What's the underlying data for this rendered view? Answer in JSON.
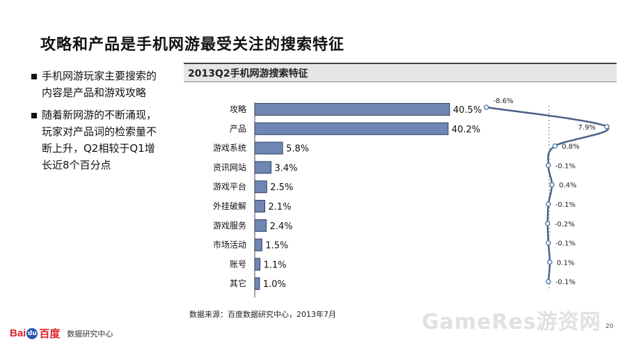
{
  "slide": {
    "title": "攻略和产品是手机网游最受关注的搜索特征",
    "bullets": [
      "手机网游玩家主要搜索的内容是产品和游戏攻略",
      "随着新网游的不断涌现，玩家对产品词的检索量不断上升，Q2相较于Q1增长近8个百分点"
    ],
    "source": "数据来源：百度数据研究中心，2013年7月",
    "logo_text": "Bai",
    "logo_paw": "du",
    "logo_brand": "百度",
    "logo_center": "数据研究中心",
    "watermark": "GameRes游资网",
    "page_number": "20"
  },
  "chart_data": [
    {
      "type": "bar",
      "orientation": "horizontal",
      "title": "2013Q2手机网游搜索特征",
      "categories": [
        "攻略",
        "产品",
        "游戏系统",
        "资讯网站",
        "游戏平台",
        "外挂破解",
        "游戏服务",
        "市场活动",
        "账号",
        "其它"
      ],
      "values": [
        40.5,
        40.2,
        5.8,
        3.4,
        2.5,
        2.1,
        2.4,
        1.5,
        1.1,
        1.0
      ],
      "value_labels": [
        "40.5%",
        "40.2%",
        "5.8%",
        "3.4%",
        "2.5%",
        "2.1%",
        "2.4%",
        "1.5%",
        "1.1%",
        "1.0%"
      ],
      "xlim": [
        0,
        40.5
      ],
      "color": "#6f86b5"
    },
    {
      "type": "line",
      "orientation": "vertical",
      "categories": [
        "攻略",
        "产品",
        "游戏系统",
        "资讯网站",
        "游戏平台",
        "外挂破解",
        "游戏服务",
        "市场活动",
        "账号",
        "其它"
      ],
      "values": [
        -8.6,
        7.9,
        0.8,
        -0.1,
        0.4,
        -0.1,
        -0.2,
        -0.1,
        0.1,
        -0.1
      ],
      "value_labels": [
        "-8.6%",
        "7.9%",
        "0.8%",
        "-0.1%",
        "0.4%",
        "-0.1%",
        "-0.2%",
        "-0.1%",
        "0.1%",
        "-0.1%"
      ],
      "zero_line": true,
      "zero_line_style": "dotted",
      "color": "#4a6185"
    }
  ]
}
